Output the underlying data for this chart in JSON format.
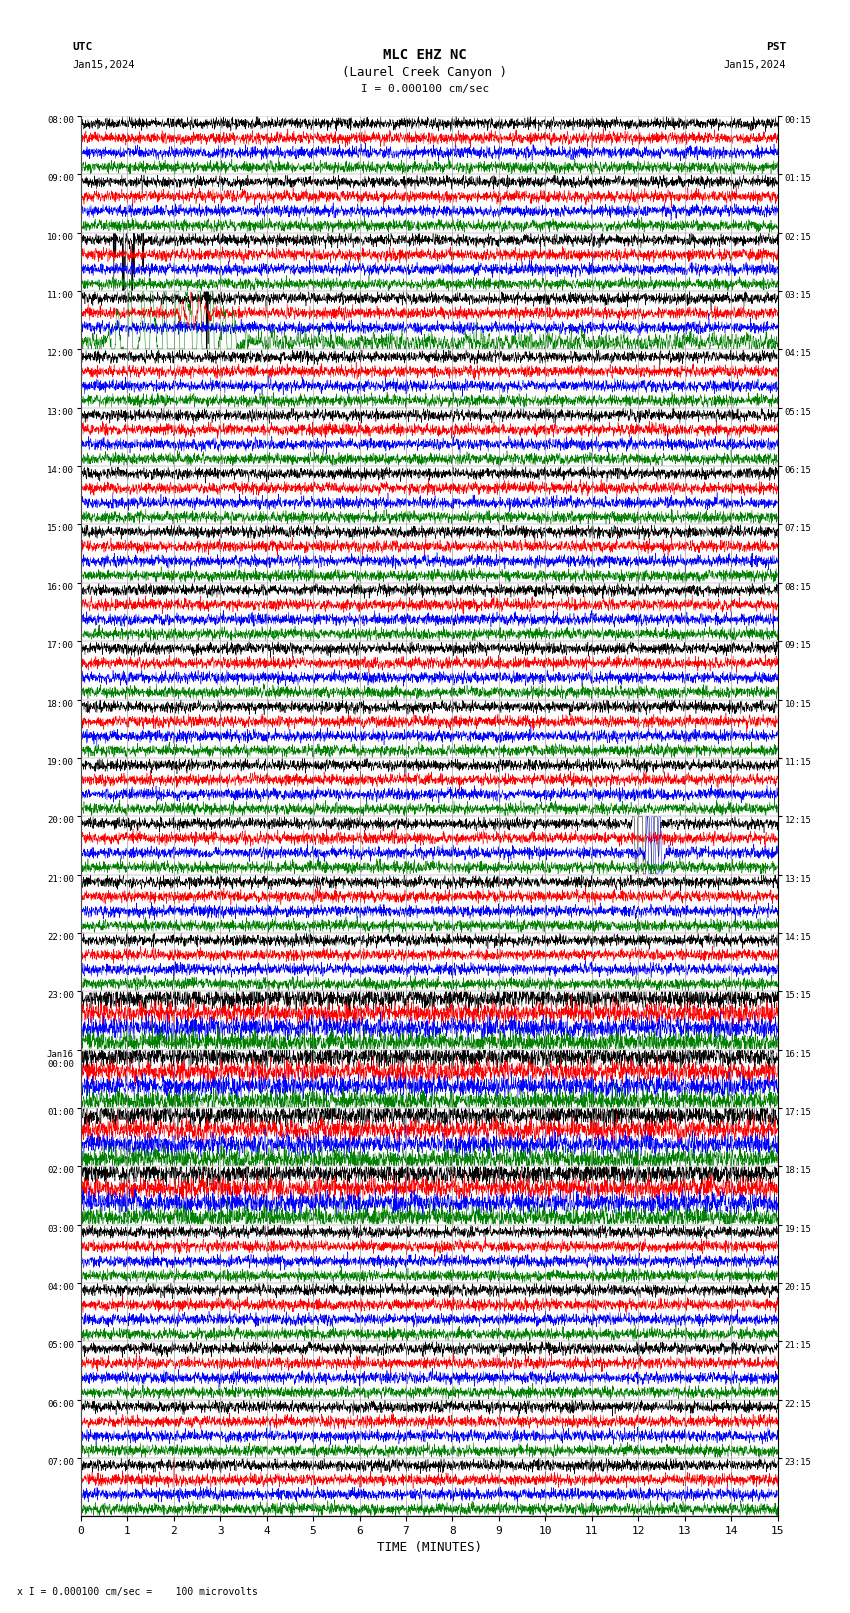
{
  "title_line1": "MLC EHZ NC",
  "title_line2": "(Laurel Creek Canyon )",
  "title_line3": "I = 0.000100 cm/sec",
  "label_utc": "UTC",
  "label_date_left": "Jan15,2024",
  "label_pst": "PST",
  "label_date_right": "Jan15,2024",
  "xlabel": "TIME (MINUTES)",
  "footer": "x I = 0.000100 cm/sec =    100 microvolts",
  "left_times": [
    "08:00",
    "09:00",
    "10:00",
    "11:00",
    "12:00",
    "13:00",
    "14:00",
    "15:00",
    "16:00",
    "17:00",
    "18:00",
    "19:00",
    "20:00",
    "21:00",
    "22:00",
    "23:00",
    "Jan16\n00:00",
    "01:00",
    "02:00",
    "03:00",
    "04:00",
    "05:00",
    "06:00",
    "07:00"
  ],
  "right_times": [
    "00:15",
    "01:15",
    "02:15",
    "03:15",
    "04:15",
    "05:15",
    "06:15",
    "07:15",
    "08:15",
    "09:15",
    "10:15",
    "11:15",
    "12:15",
    "13:15",
    "14:15",
    "15:15",
    "16:15",
    "17:15",
    "18:15",
    "19:15",
    "20:15",
    "21:15",
    "22:15",
    "23:15"
  ],
  "num_rows": 24,
  "traces_per_row": 4,
  "colors_cycle": [
    "black",
    "red",
    "blue",
    "green"
  ],
  "xlim": [
    0,
    15
  ],
  "xticks": [
    0,
    1,
    2,
    3,
    4,
    5,
    6,
    7,
    8,
    9,
    10,
    11,
    12,
    13,
    14,
    15
  ],
  "bg_color": "#ffffff",
  "seed": 42
}
